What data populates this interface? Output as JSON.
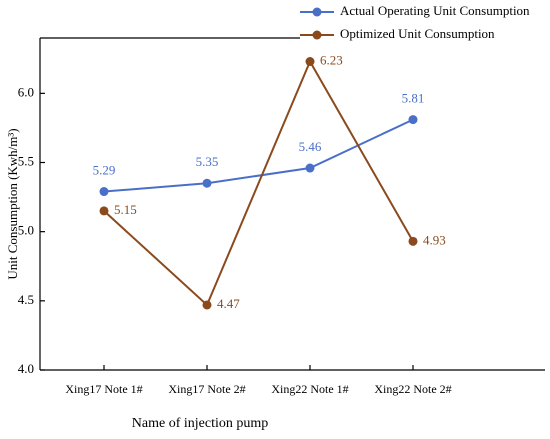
{
  "chart_data": {
    "type": "line",
    "x_label": "Name of injection pump",
    "y_label": "Unit Consumption (Kwh/m³)",
    "categories": [
      "Xing17 Note 1#",
      "Xing17 Note 2#",
      "Xing22 Note 1#",
      "Xing22 Note 2#"
    ],
    "series": [
      {
        "name": "Actual Operating Unit Consumption",
        "color": "#4a6fc9",
        "values": [
          5.29,
          5.35,
          5.46,
          5.81
        ]
      },
      {
        "name": "Optimized Unit Consumption",
        "color": "#8b4a1e",
        "values": [
          5.15,
          4.47,
          6.23,
          4.93
        ]
      }
    ],
    "ylim": [
      4.0,
      6.4
    ],
    "yticks": [
      {
        "value": 4.0,
        "label": "4.0"
      },
      4.5,
      {
        "value": 5.0,
        "label": "5.0"
      },
      5.5,
      {
        "value": 6.0,
        "label": "6.0"
      }
    ],
    "legend": "top-right"
  }
}
